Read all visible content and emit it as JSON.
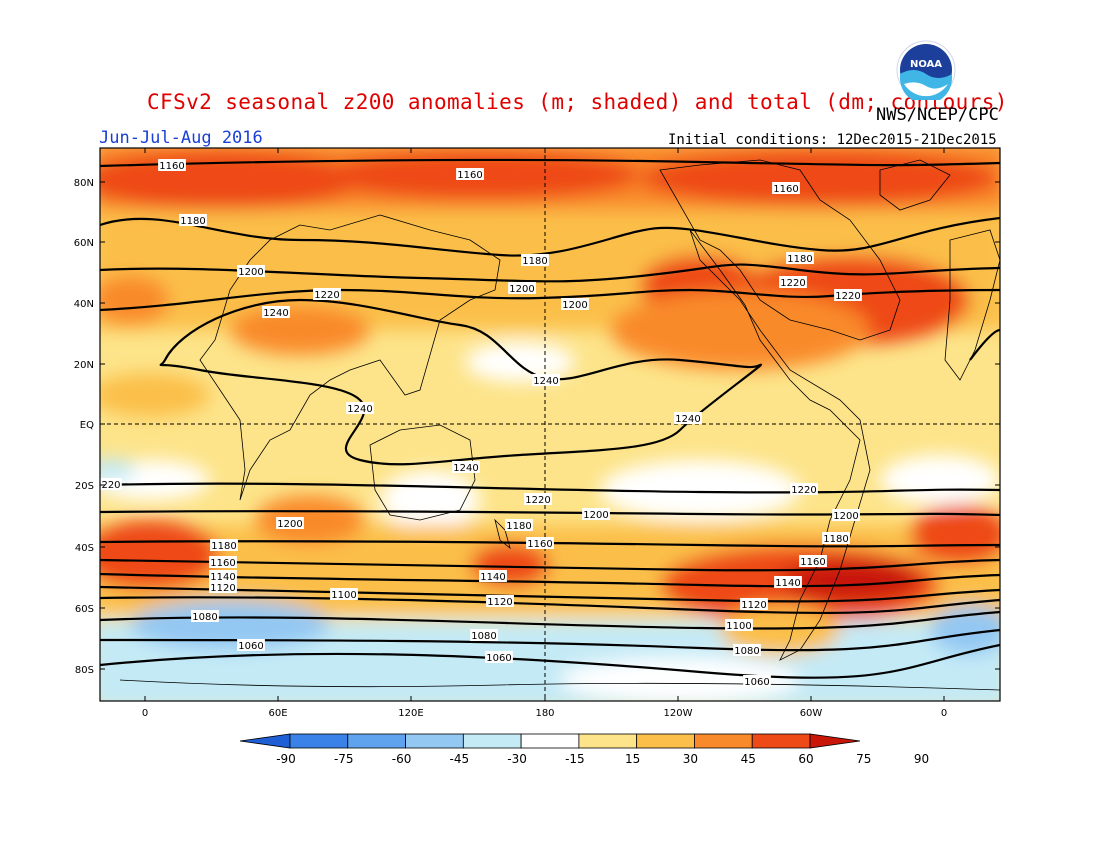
{
  "header": {
    "title": "CFSv2 seasonal z200 anomalies (m; shaded) and total (dm; contours)",
    "agency": "NWS/NCEP/CPC",
    "season": "Jun-Jul-Aug 2016",
    "initial_conditions": "Initial conditions: 12Dec2015-21Dec2015",
    "logo_text": "NOAA"
  },
  "colors": {
    "title": "#e00000",
    "season": "#1a3fd6",
    "anomaly_bins": [
      "#1f5fd6",
      "#3a82e8",
      "#5fa3ee",
      "#93c8f3",
      "#c4eaf6",
      "#ffffff",
      "#fde48a",
      "#fbbf4a",
      "#f98a2c",
      "#ee4a17",
      "#c81609"
    ]
  },
  "map": {
    "lat_labels": [
      "80N",
      "60N",
      "40N",
      "20N",
      "EQ",
      "20S",
      "40S",
      "60S",
      "80S"
    ],
    "lon_labels": [
      "0",
      "60E",
      "120E",
      "180",
      "120W",
      "60W",
      "0"
    ],
    "contour_labels": [
      "1160",
      "1160",
      "1160",
      "1180",
      "1180",
      "1180",
      "1200",
      "1220",
      "1200",
      "1220",
      "1200",
      "1220",
      "1240",
      "1240",
      "1240",
      "1240",
      "1240",
      "220",
      "1220",
      "1220",
      "1200",
      "1200",
      "1200",
      "1180",
      "1180",
      "1180",
      "1160",
      "1160",
      "1160",
      "1140",
      "1140",
      "1140",
      "1120",
      "1120",
      "1120",
      "1100",
      "1100",
      "1080",
      "1080",
      "1080",
      "1060",
      "1060",
      "1060"
    ]
  },
  "colorbar": {
    "ticks": [
      "-90",
      "-75",
      "-60",
      "-45",
      "-30",
      "-15",
      "15",
      "30",
      "45",
      "60",
      "75",
      "90"
    ]
  }
}
